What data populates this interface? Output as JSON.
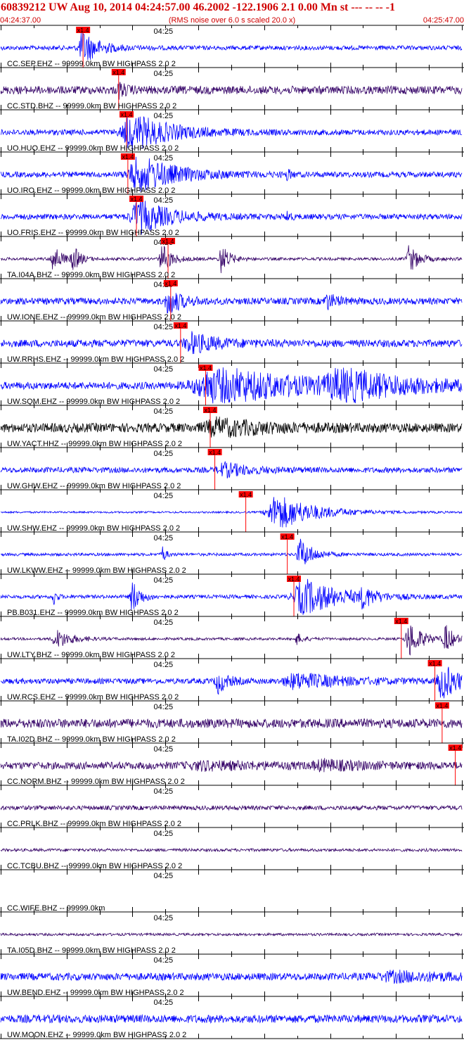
{
  "header": {
    "title": "60839212 UW Aug 10, 2014 04:24:57.00   46.2002 -122.1906  2.1 0.00 Mn st --- -- --   -1",
    "start_time": "04:24:37.00",
    "note": "(RMS noise over 6.0 s scaled 20.0 x)",
    "end_time": "04:25:47.00"
  },
  "chart_data": {
    "type": "line",
    "x_unit": "s",
    "xlim": [
      0,
      70
    ],
    "tick_label": "04:25",
    "pick_label": "x1.4",
    "colors": {
      "blue": "#0000ff",
      "purple": "#330066",
      "black": "#000000",
      "pick": "#ff0000",
      "grid": "#000000"
    },
    "traces": [
      {
        "label": "CC.SEP.EHZ -- 99999.0km BW  HIGHPASS  2.0  2",
        "color": "blue",
        "pick": 12.5,
        "noise": 0.12,
        "bursts": [
          {
            "t": 12.5,
            "a": 0.9,
            "w": 2.5
          }
        ]
      },
      {
        "label": "CC.STD.BHZ -- 99999.0km BW  HIGHPASS  2.0  2",
        "color": "purple",
        "pick": 17.9,
        "noise": 0.22,
        "bursts": [
          {
            "t": 18.0,
            "a": 0.35,
            "w": 1
          }
        ]
      },
      {
        "label": "UO.HUO.EHZ -- 99999.0km BW  HIGHPASS  2.0  2",
        "color": "blue",
        "pick": 19.1,
        "noise": 0.15,
        "bursts": [
          {
            "t": 20,
            "a": 1.0,
            "w": 6
          }
        ]
      },
      {
        "label": "UO.IRO.EHZ -- 99999.0km BW  HIGHPASS  2.0  2",
        "color": "blue",
        "pick": 19.3,
        "noise": 0.15,
        "bursts": [
          {
            "t": 21,
            "a": 1.0,
            "w": 6
          },
          {
            "t": 43.5,
            "a": 0.3,
            "w": 0.4
          }
        ]
      },
      {
        "label": "UO.FRIS.EHZ -- 99999.0km BW  HIGHPASS  2.0  2",
        "color": "blue",
        "pick": 20.6,
        "noise": 0.15,
        "bursts": [
          {
            "t": 21,
            "a": 0.9,
            "w": 5
          },
          {
            "t": 43.5,
            "a": 0.3,
            "w": 0.4
          }
        ]
      },
      {
        "label": "TA.I04A.BHZ -- 99999.0km BW  HIGHPASS  2.0  2",
        "color": "purple",
        "pick": 25.4,
        "noise": 0.08,
        "bursts": [
          {
            "t": 8,
            "a": 0.8,
            "w": 1.2
          },
          {
            "t": 11,
            "a": 0.7,
            "w": 1
          },
          {
            "t": 24.5,
            "a": 0.8,
            "w": 1.5
          },
          {
            "t": 33.5,
            "a": 0.8,
            "w": 1.2
          },
          {
            "t": 62,
            "a": 0.75,
            "w": 1.5
          }
        ]
      },
      {
        "label": "UW.IONE.EHZ -- 99999.0km BW  HIGHPASS  2.0  2",
        "color": "blue",
        "pick": 25.8,
        "noise": 0.18,
        "bursts": [
          {
            "t": 25.5,
            "a": 0.7,
            "w": 2
          },
          {
            "t": 49.5,
            "a": 0.4,
            "w": 1.5
          }
        ]
      },
      {
        "label": "UW.RRHS.EHZ -- 99999.0km BW  HIGHPASS  2.0  2",
        "color": "blue",
        "pick": 27.3,
        "noise": 0.2,
        "bursts": [
          {
            "t": 29,
            "a": 0.5,
            "w": 4
          }
        ]
      },
      {
        "label": "UW.SQM.EHZ -- 99999.0km BW  HIGHPASS  2.0  2",
        "color": "blue",
        "pick": 31.1,
        "noise": 0.2,
        "bursts": [
          {
            "t": 33,
            "a": 1.0,
            "w": 14
          },
          {
            "t": 52,
            "a": 0.7,
            "w": 10
          }
        ]
      },
      {
        "label": "UW.YACT.HHZ -- 99999.0km BW  HIGHPASS  2.0  2",
        "color": "black",
        "pick": 31.8,
        "noise": 0.25,
        "bursts": [
          {
            "t": 33,
            "a": 0.4,
            "w": 8
          }
        ]
      },
      {
        "label": "UW.GHW.EHZ -- 99999.0km BW  HIGHPASS  2.0  2",
        "color": "blue",
        "pick": 32.5,
        "noise": 0.15,
        "bursts": [
          {
            "t": 34,
            "a": 0.35,
            "w": 4
          }
        ]
      },
      {
        "label": "UW.SHW.EHZ -- 99999.0km BW  HIGHPASS  2.0  2",
        "color": "blue",
        "pick": 37.2,
        "noise": 0.05,
        "bursts": [
          {
            "t": 42,
            "a": 1.0,
            "w": 6
          }
        ]
      },
      {
        "label": "UW.LKWW.EHZ -- 99999.0km BW  HIGHPASS  2.0  2",
        "color": "blue",
        "pick": 43.5,
        "noise": 0.08,
        "bursts": [
          {
            "t": 24.5,
            "a": 0.5,
            "w": 0.5
          },
          {
            "t": 45.5,
            "a": 0.85,
            "w": 2
          }
        ]
      },
      {
        "label": "PB.B031.EHZ -- 99999.0km BW  HIGHPASS  2.0  2",
        "color": "blue",
        "pick": 44.5,
        "noise": 0.1,
        "bursts": [
          {
            "t": 8,
            "a": 0.5,
            "w": 0.4
          },
          {
            "t": 20,
            "a": 0.9,
            "w": 1.2
          },
          {
            "t": 46,
            "a": 1.0,
            "w": 6
          },
          {
            "t": 55,
            "a": 0.5,
            "w": 1.5
          }
        ]
      },
      {
        "label": "UW.LTY.BHZ -- 99999.0km BW  HIGHPASS  2.0  2",
        "color": "purple",
        "pick": 60.8,
        "noise": 0.07,
        "bursts": [
          {
            "t": 8.5,
            "a": 0.5,
            "w": 2.5
          },
          {
            "t": 45,
            "a": 0.3,
            "w": 1
          },
          {
            "t": 62,
            "a": 1.0,
            "w": 2
          },
          {
            "t": 67.5,
            "a": 0.8,
            "w": 1.2
          }
        ]
      },
      {
        "label": "UW.RCS.EHZ -- 99999.0km BW  HIGHPASS  2.0  2",
        "color": "blue",
        "pick": 65.9,
        "noise": 0.15,
        "bursts": [
          {
            "t": 33,
            "a": 0.6,
            "w": 1.5
          },
          {
            "t": 45,
            "a": 0.4,
            "w": 8
          },
          {
            "t": 67,
            "a": 1.0,
            "w": 2.5
          }
        ]
      },
      {
        "label": "TA.I02D.BHZ -- 99999.0km BW  HIGHPASS  2.0  2",
        "color": "purple",
        "pick": 67.0,
        "noise": 0.25,
        "bursts": []
      },
      {
        "label": "CC.NORM.BHZ -- 99999.0km BW  HIGHPASS  2.0  2",
        "color": "purple",
        "pick": 69.0,
        "noise": 0.2,
        "bursts": [
          {
            "t": 31,
            "a": 0.15,
            "w": 10
          },
          {
            "t": 49,
            "a": 0.2,
            "w": 6
          }
        ]
      },
      {
        "label": "CC.PRLK.BHZ -- 99999.0km BW  HIGHPASS  2.0  2",
        "color": "purple",
        "pick": null,
        "noise": 0.12,
        "bursts": []
      },
      {
        "label": "CC.TCBU.BHZ -- 99999.0km BW  HIGHPASS  2.0  2",
        "color": "purple",
        "pick": null,
        "noise": 0.08,
        "bursts": []
      },
      {
        "label": "CC.WIFE.BHZ -- 99999.0km",
        "color": "blue",
        "pick": null,
        "noise": 0,
        "bursts": []
      },
      {
        "label": "TA.I05D.BHZ -- 99999.0km BW  HIGHPASS  2.0  2",
        "color": "purple",
        "pick": null,
        "noise": 0.07,
        "bursts": []
      },
      {
        "label": "UW.BEND.EHZ -- 99999.0km BW  HIGHPASS  2.0  2",
        "color": "blue",
        "pick": null,
        "noise": 0.2,
        "bursts": [
          {
            "t": 60,
            "a": 0.2,
            "w": 10
          }
        ]
      },
      {
        "label": "UW.MOON.EHZ -- 99999.0km BW  HIGHPASS  2.0  2",
        "color": "blue",
        "pick": null,
        "noise": 0.22,
        "bursts": []
      }
    ]
  }
}
